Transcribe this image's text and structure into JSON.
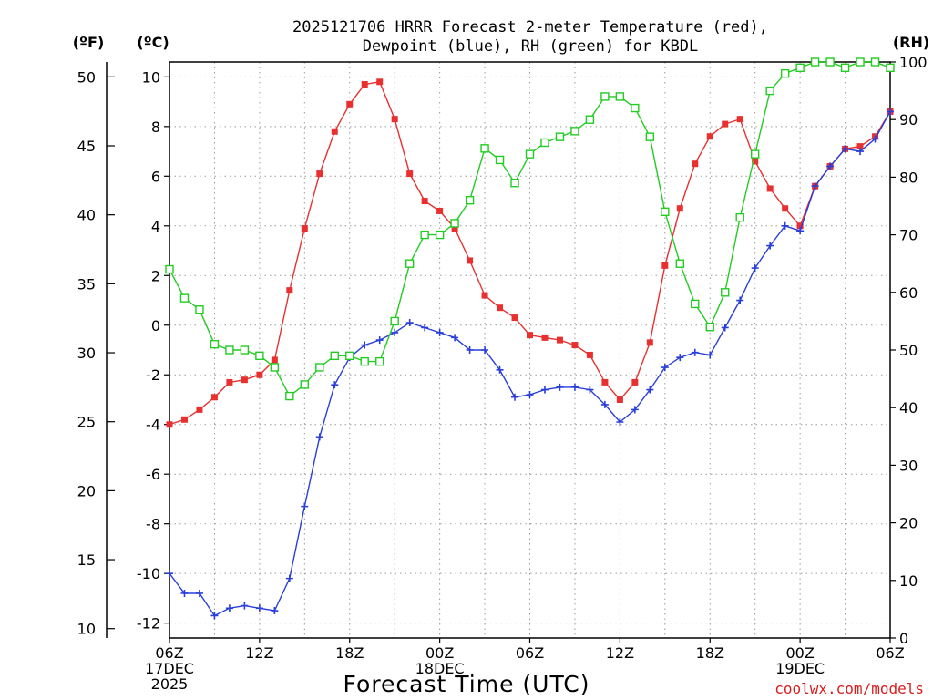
{
  "chart_data": {
    "type": "line",
    "title": [
      "2025121706 HRRR Forecast 2-meter Temperature (red),",
      "Dewpoint (blue), RH (green) for KBDL"
    ],
    "xlabel": "Forecast Time (UTC)",
    "credit": "coolwx.com/models",
    "units": {
      "fahrenheit": "(ºF)",
      "celsius": "(ºC)",
      "rh": "(RH)"
    },
    "x_hours": [
      0,
      1,
      2,
      3,
      4,
      5,
      6,
      7,
      8,
      9,
      10,
      11,
      12,
      13,
      14,
      15,
      16,
      17,
      18,
      19,
      20,
      21,
      22,
      23,
      24,
      25,
      26,
      27,
      28,
      29,
      30,
      31,
      32,
      33,
      34,
      35,
      36,
      37,
      38,
      39,
      40,
      41,
      42,
      43,
      44,
      45,
      46,
      47,
      48
    ],
    "x_range": [
      0,
      48
    ],
    "x_ticks": [
      {
        "hour": 0,
        "lines": [
          "06Z",
          "17DEC",
          "2025"
        ]
      },
      {
        "hour": 6,
        "lines": [
          "12Z"
        ]
      },
      {
        "hour": 12,
        "lines": [
          "18Z"
        ]
      },
      {
        "hour": 18,
        "lines": [
          "00Z",
          "18DEC"
        ]
      },
      {
        "hour": 24,
        "lines": [
          "06Z"
        ]
      },
      {
        "hour": 30,
        "lines": [
          "12Z"
        ]
      },
      {
        "hour": 36,
        "lines": [
          "18Z"
        ]
      },
      {
        "hour": 42,
        "lines": [
          "00Z",
          "19DEC"
        ]
      },
      {
        "hour": 48,
        "lines": [
          "06Z"
        ]
      }
    ],
    "y_celsius": {
      "range": [
        -12.6,
        10.6
      ],
      "ticks": [
        -12,
        -10,
        -8,
        -6,
        -4,
        -2,
        0,
        2,
        4,
        6,
        8,
        10
      ]
    },
    "y_fahrenheit": {
      "ticks": [
        10,
        15,
        20,
        25,
        30,
        35,
        40,
        45,
        50
      ]
    },
    "y_rh": {
      "range": [
        0,
        100
      ],
      "ticks": [
        0,
        10,
        20,
        30,
        40,
        50,
        60,
        70,
        80,
        90,
        100
      ]
    },
    "series": [
      {
        "name": "2-meter Temperature",
        "color": "#e83030",
        "axis": "celsius",
        "marker": "filled-square",
        "values": [
          -4.0,
          -3.8,
          -3.4,
          -2.9,
          -2.3,
          -2.2,
          -2.0,
          -1.4,
          1.4,
          3.9,
          6.1,
          7.8,
          8.9,
          9.7,
          9.8,
          8.3,
          6.1,
          5.0,
          4.6,
          3.9,
          2.6,
          1.2,
          0.7,
          0.3,
          -0.4,
          -0.5,
          -0.6,
          -0.8,
          -1.2,
          -2.3,
          -3.0,
          -2.3,
          -0.7,
          2.4,
          4.7,
          6.5,
          7.6,
          8.1,
          8.3,
          6.6,
          5.5,
          4.7,
          4.0,
          5.6,
          6.4,
          7.1,
          7.2,
          7.6,
          8.6
        ]
      },
      {
        "name": "Dewpoint",
        "color": "#2a3fd8",
        "axis": "celsius",
        "marker": "plus",
        "values": [
          -10.0,
          -10.8,
          -10.8,
          -11.7,
          -11.4,
          -11.3,
          -11.4,
          -11.5,
          -10.2,
          -7.3,
          -4.5,
          -2.4,
          -1.3,
          -0.8,
          -0.6,
          -0.3,
          0.1,
          -0.1,
          -0.3,
          -0.5,
          -1.0,
          -1.0,
          -1.8,
          -2.9,
          -2.8,
          -2.6,
          -2.5,
          -2.5,
          -2.6,
          -3.2,
          -3.9,
          -3.4,
          -2.6,
          -1.7,
          -1.3,
          -1.1,
          -1.2,
          -0.1,
          1.0,
          2.3,
          3.2,
          4.0,
          3.8,
          5.6,
          6.4,
          7.1,
          7.0,
          7.5,
          8.6
        ]
      },
      {
        "name": "RH",
        "color": "#22cc22",
        "axis": "rh",
        "marker": "open-square",
        "values": [
          64,
          59,
          57,
          51,
          50,
          50,
          49,
          47,
          42,
          44,
          47,
          49,
          49,
          48,
          48,
          55,
          65,
          70,
          70,
          72,
          76,
          85,
          83,
          79,
          84,
          86,
          87,
          88,
          90,
          94,
          94,
          92,
          87,
          74,
          65,
          58,
          54,
          60,
          73,
          84,
          95,
          98,
          99,
          100,
          100,
          99,
          100,
          100,
          99
        ]
      }
    ]
  }
}
